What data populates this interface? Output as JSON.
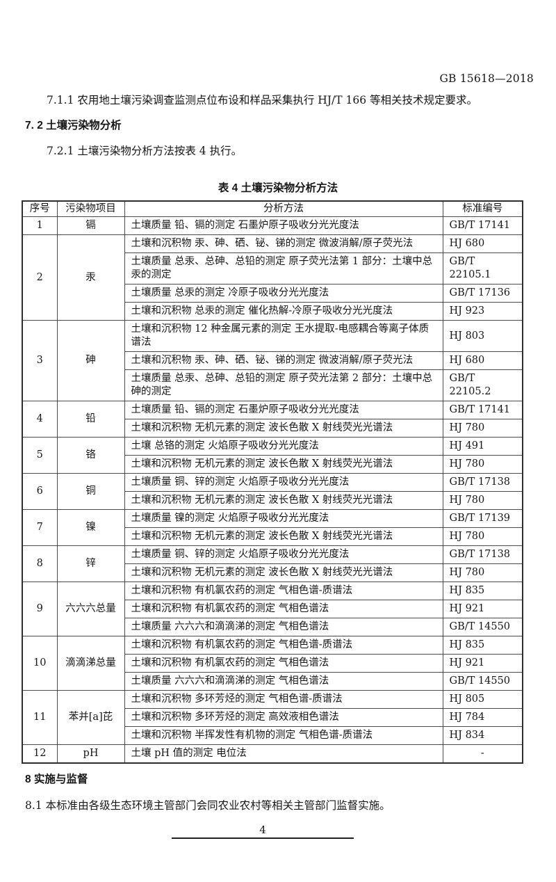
{
  "doc": {
    "standard_code": "GB 15618—2018",
    "para_711": "7.1.1 农用地土壤污染调查监测点位布设和样品采集执行 HJ/T 166 等相关技术规定要求。",
    "heading_72": "7. 2 土壤污染物分析",
    "para_721": "7.2.1 土壤污染物分析方法按表 4 执行。",
    "table_title": "表 4 土壤污染物分析方法",
    "heading_8": "8 实施与监督",
    "para_81": "8.1 本标准由各级生态环境主管部门会同农业农村等相关主管部门监督实施。",
    "page_number": "4"
  },
  "table": {
    "headers": [
      "序号",
      "污染物项目",
      "分析方法",
      "标准编号"
    ],
    "rows": [
      {
        "no": "1",
        "pollutant": "镉",
        "methods": [
          {
            "method": "土壤质量 铅、镉的测定 石墨炉原子吸收分光光度法",
            "code": "GB/T 17141"
          }
        ]
      },
      {
        "no": "2",
        "pollutant": "汞",
        "methods": [
          {
            "method": "土壤和沉积物 汞、砷、硒、铋、锑的测定 微波消解/原子荧光法",
            "code": "HJ 680"
          },
          {
            "method": "土壤质量 总汞、总砷、总铅的测定 原子荧光法第 1 部分：土壤中总汞的测定",
            "code": "GB/T 22105.1"
          },
          {
            "method": "土壤质量 总汞的测定 冷原子吸收分光光度法",
            "code": "GB/T 17136"
          },
          {
            "method": "土壤和沉积物 总汞的测定 催化热解-冷原子吸收分光光度法",
            "code": "HJ 923"
          }
        ]
      },
      {
        "no": "3",
        "pollutant": "砷",
        "methods": [
          {
            "method": "土壤和沉积物 12 种金属元素的测定 王水提取-电感耦合等离子体质谱法",
            "code": "HJ 803"
          },
          {
            "method": "土壤和沉积物 汞、砷、硒、铋、锑的测定 微波消解/原子荧光法",
            "code": "HJ 680"
          },
          {
            "method": "土壤质量 总汞、总砷、总铅的测定 原子荧光法第 2 部分：土壤中总砷的测定",
            "code": "GB/T 22105.2"
          }
        ]
      },
      {
        "no": "4",
        "pollutant": "铅",
        "methods": [
          {
            "method": "土壤质量 铅、镉的测定 石墨炉原子吸收分光光度法",
            "code": "GB/T 17141"
          },
          {
            "method": "土壤和沉积物 无机元素的测定 波长色散 X 射线荧光光谱法",
            "code": "HJ 780"
          }
        ]
      },
      {
        "no": "5",
        "pollutant": "铬",
        "methods": [
          {
            "method": "土壤 总铬的测定 火焰原子吸收分光光度法",
            "code": "HJ 491"
          },
          {
            "method": "土壤和沉积物 无机元素的测定 波长色散 X 射线荧光光谱法",
            "code": "HJ 780"
          }
        ]
      },
      {
        "no": "6",
        "pollutant": "铜",
        "methods": [
          {
            "method": "土壤质量 铜、锌的测定 火焰原子吸收分光光度法",
            "code": "GB/T 17138"
          },
          {
            "method": "土壤和沉积物 无机元素的测定 波长色散 X 射线荧光光谱法",
            "code": "HJ 780"
          }
        ]
      },
      {
        "no": "7",
        "pollutant": "镍",
        "methods": [
          {
            "method": "土壤质量 镍的测定 火焰原子吸收分光光度法",
            "code": "GB/T 17139"
          },
          {
            "method": "土壤和沉积物 无机元素的测定 波长色散 X 射线荧光光谱法",
            "code": "HJ 780"
          }
        ]
      },
      {
        "no": "8",
        "pollutant": "锌",
        "methods": [
          {
            "method": "土壤质量 铜、锌的测定 火焰原子吸收分光光度法",
            "code": "GB/T 17138"
          },
          {
            "method": "土壤和沉积物 无机元素的测定 波长色散 X 射线荧光光谱法",
            "code": "HJ 780"
          }
        ]
      },
      {
        "no": "9",
        "pollutant": "六六六总量",
        "methods": [
          {
            "method": "土壤和沉积物 有机氯农药的测定 气相色谱-质谱法",
            "code": "HJ 835"
          },
          {
            "method": "土壤和沉积物 有机氯农药的测定 气相色谱法",
            "code": "HJ 921"
          },
          {
            "method": "土壤质量 六六六和滴滴涕的测定 气相色谱法",
            "code": "GB/T 14550"
          }
        ]
      },
      {
        "no": "10",
        "pollutant": "滴滴涕总量",
        "methods": [
          {
            "method": "土壤和沉积物 有机氯农药的测定 气相色谱-质谱法",
            "code": "HJ 835"
          },
          {
            "method": "土壤和沉积物 有机氯农药的测定 气相色谱法",
            "code": "HJ 921"
          },
          {
            "method": "土壤质量 六六六和滴滴涕的测定 气相色谱法",
            "code": "GB/T 14550"
          }
        ]
      },
      {
        "no": "11",
        "pollutant": "苯并[a]芘",
        "methods": [
          {
            "method": "土壤和沉积物 多环芳烃的测定 气相色谱-质谱法",
            "code": "HJ 805"
          },
          {
            "method": "土壤和沉积物 多环芳烃的测定 高效液相色谱法",
            "code": "HJ 784"
          },
          {
            "method": "土壤和沉积物 半挥发性有机物的测定 气相色谱-质谱法",
            "code": "HJ 834"
          }
        ]
      },
      {
        "no": "12",
        "pollutant": "pH",
        "methods": [
          {
            "method": "土壤 pH 值的测定 电位法",
            "code": "-"
          }
        ]
      }
    ]
  }
}
